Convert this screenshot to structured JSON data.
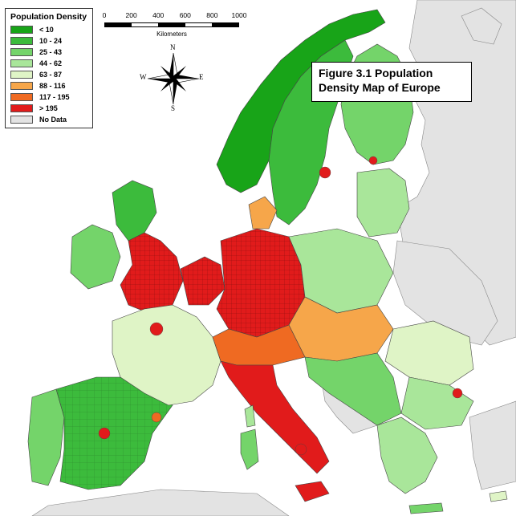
{
  "figure_title": "Figure 3.1 Population Density Map of Europe",
  "legend": {
    "title": "Population Density",
    "classes": [
      {
        "label": "< 10",
        "color": "#18a418"
      },
      {
        "label": "10 - 24",
        "color": "#3cbb3c"
      },
      {
        "label": "25 - 43",
        "color": "#74d46a"
      },
      {
        "label": "44 - 62",
        "color": "#a9e69a"
      },
      {
        "label": "63 - 87",
        "color": "#dff4c6"
      },
      {
        "label": "88 - 116",
        "color": "#f6a64a"
      },
      {
        "label": "117 - 195",
        "color": "#ef6a22"
      },
      {
        "label": "> 195",
        "color": "#e11b1b"
      },
      {
        "label": "No Data",
        "color": "#e3e3e3"
      }
    ]
  },
  "scale": {
    "ticks": [
      "0",
      "200",
      "400",
      "600",
      "800",
      "1000"
    ],
    "unit": "Kilometers"
  },
  "compass": {
    "n": "N",
    "s": "S",
    "e": "E",
    "w": "W"
  },
  "colors": {
    "sea": "#ffffff",
    "outline": "#444444",
    "no_data": "#e3e3e3"
  }
}
